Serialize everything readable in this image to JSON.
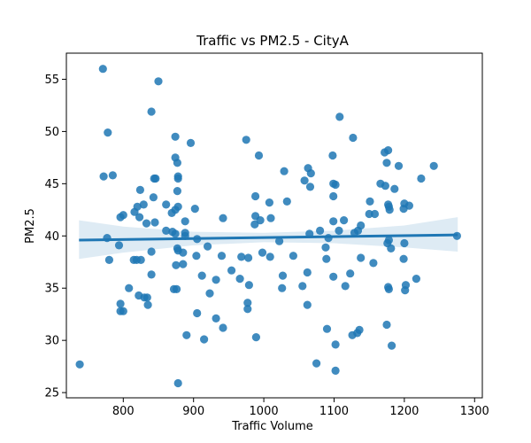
{
  "chart_data": {
    "type": "scatter",
    "title": "Traffic vs PM2.5 - CityA",
    "xlabel": "Traffic Volume",
    "ylabel": "PM2.5",
    "xlim": [
      719,
      1311
    ],
    "ylim": [
      24.5,
      57.5
    ],
    "xticks": [
      "800",
      "900",
      "1000",
      "1100",
      "1200",
      "1300"
    ],
    "yticks": [
      "25",
      "30",
      "35",
      "40",
      "45",
      "50",
      "55"
    ],
    "grid": false,
    "point_color": "#1f77b4",
    "regression": {
      "x": [
        737,
        1276
      ],
      "y": [
        39.6,
        40.1
      ]
    },
    "confidence_band": {
      "x": [
        737,
        800,
        900,
        1000,
        1100,
        1200,
        1276
      ],
      "upper": [
        41.5,
        40.9,
        40.4,
        40.3,
        40.5,
        41.0,
        41.8
      ],
      "lower": [
        37.8,
        38.4,
        39.1,
        39.4,
        39.3,
        38.9,
        38.5
      ]
    },
    "points": [
      [
        771,
        56.0
      ],
      [
        850,
        54.8
      ],
      [
        778,
        49.9
      ],
      [
        840,
        51.9
      ],
      [
        874,
        49.5
      ],
      [
        896,
        48.9
      ],
      [
        1108,
        51.4
      ],
      [
        1127,
        49.4
      ],
      [
        975,
        49.2
      ],
      [
        993,
        47.7
      ],
      [
        1098,
        47.7
      ],
      [
        1172,
        48.0
      ],
      [
        1177,
        48.2
      ],
      [
        1063,
        46.5
      ],
      [
        1067,
        46.0
      ],
      [
        874,
        47.5
      ],
      [
        877,
        47.0
      ],
      [
        1029,
        46.2
      ],
      [
        1175,
        47.0
      ],
      [
        1242,
        46.7
      ],
      [
        1192,
        46.7
      ],
      [
        772,
        45.7
      ],
      [
        785,
        45.8
      ],
      [
        844,
        45.5
      ],
      [
        846,
        45.5
      ],
      [
        878,
        45.7
      ],
      [
        878,
        45.5
      ],
      [
        1058,
        45.3
      ],
      [
        1066,
        44.7
      ],
      [
        1099,
        45.0
      ],
      [
        1102,
        44.9
      ],
      [
        1224,
        45.5
      ],
      [
        1166,
        45.0
      ],
      [
        1173,
        44.8
      ],
      [
        1186,
        44.5
      ],
      [
        824,
        44.4
      ],
      [
        877,
        44.3
      ],
      [
        843,
        43.7
      ],
      [
        988,
        43.8
      ],
      [
        1008,
        43.2
      ],
      [
        1033,
        43.3
      ],
      [
        1151,
        43.3
      ],
      [
        1200,
        43.1
      ],
      [
        1199,
        42.6
      ],
      [
        1207,
        42.9
      ],
      [
        1177,
        43.0
      ],
      [
        1178,
        42.8
      ],
      [
        1179,
        42.5
      ],
      [
        1099,
        43.8
      ],
      [
        816,
        42.3
      ],
      [
        829,
        43.0
      ],
      [
        861,
        43.0
      ],
      [
        820,
        42.8
      ],
      [
        874,
        42.5
      ],
      [
        878,
        42.8
      ],
      [
        902,
        42.6
      ],
      [
        869,
        42.2
      ],
      [
        796,
        41.8
      ],
      [
        800,
        42.0
      ],
      [
        823,
        41.8
      ],
      [
        833,
        41.2
      ],
      [
        845,
        41.3
      ],
      [
        861,
        40.5
      ],
      [
        888,
        41.4
      ],
      [
        942,
        41.7
      ],
      [
        988,
        41.9
      ],
      [
        995,
        41.5
      ],
      [
        1010,
        41.7
      ],
      [
        987,
        41.1
      ],
      [
        1099,
        41.4
      ],
      [
        1114,
        41.5
      ],
      [
        1138,
        41.0
      ],
      [
        1150,
        42.1
      ],
      [
        1158,
        42.1
      ],
      [
        1129,
        40.3
      ],
      [
        1134,
        40.5
      ],
      [
        1080,
        40.5
      ],
      [
        1065,
        40.2
      ],
      [
        874,
        40.2
      ],
      [
        888,
        40.0
      ],
      [
        888,
        40.3
      ],
      [
        905,
        39.7
      ],
      [
        920,
        39.0
      ],
      [
        1022,
        39.5
      ],
      [
        1092,
        39.8
      ],
      [
        1088,
        38.9
      ],
      [
        1107,
        40.5
      ],
      [
        1176,
        39.3
      ],
      [
        1178,
        39.6
      ],
      [
        1200,
        39.3
      ],
      [
        1275,
        40.0
      ],
      [
        777,
        39.8
      ],
      [
        794,
        39.1
      ],
      [
        815,
        37.7
      ],
      [
        819,
        37.7
      ],
      [
        840,
        38.5
      ],
      [
        877,
        38.8
      ],
      [
        870,
        40.4
      ],
      [
        878,
        38.6
      ],
      [
        885,
        38.4
      ],
      [
        904,
        38.1
      ],
      [
        940,
        38.1
      ],
      [
        968,
        38.0
      ],
      [
        978,
        37.9
      ],
      [
        998,
        38.4
      ],
      [
        1009,
        38.0
      ],
      [
        1042,
        38.1
      ],
      [
        1089,
        37.8
      ],
      [
        1123,
        36.4
      ],
      [
        1138,
        37.9
      ],
      [
        1156,
        37.4
      ],
      [
        1181,
        38.8
      ],
      [
        1199,
        37.8
      ],
      [
        780,
        37.7
      ],
      [
        825,
        37.7
      ],
      [
        875,
        37.2
      ],
      [
        885,
        37.3
      ],
      [
        912,
        36.2
      ],
      [
        932,
        35.8
      ],
      [
        954,
        36.7
      ],
      [
        966,
        35.9
      ],
      [
        840,
        36.3
      ],
      [
        872,
        34.9
      ],
      [
        876,
        34.9
      ],
      [
        923,
        34.5
      ],
      [
        979,
        35.3
      ],
      [
        1026,
        35.0
      ],
      [
        1027,
        36.2
      ],
      [
        1055,
        35.2
      ],
      [
        1062,
        36.5
      ],
      [
        1099,
        36.1
      ],
      [
        1116,
        35.2
      ],
      [
        1177,
        35.1
      ],
      [
        1178,
        34.9
      ],
      [
        1201,
        34.8
      ],
      [
        1202,
        35.3
      ],
      [
        1217,
        35.9
      ],
      [
        808,
        35.0
      ],
      [
        822,
        34.3
      ],
      [
        830,
        34.1
      ],
      [
        834,
        34.1
      ],
      [
        796,
        33.5
      ],
      [
        796,
        32.8
      ],
      [
        800,
        32.8
      ],
      [
        835,
        33.4
      ],
      [
        905,
        32.6
      ],
      [
        932,
        32.1
      ],
      [
        977,
        33.0
      ],
      [
        977,
        33.6
      ],
      [
        1062,
        33.4
      ],
      [
        1090,
        31.1
      ],
      [
        1126,
        30.5
      ],
      [
        1133,
        30.7
      ],
      [
        1136,
        31.0
      ],
      [
        1175,
        31.5
      ],
      [
        942,
        31.2
      ],
      [
        890,
        30.5
      ],
      [
        915,
        30.1
      ],
      [
        989,
        30.3
      ],
      [
        1102,
        29.6
      ],
      [
        1182,
        29.5
      ],
      [
        1075,
        27.8
      ],
      [
        1102,
        27.1
      ],
      [
        738,
        27.7
      ],
      [
        878,
        25.9
      ]
    ]
  }
}
